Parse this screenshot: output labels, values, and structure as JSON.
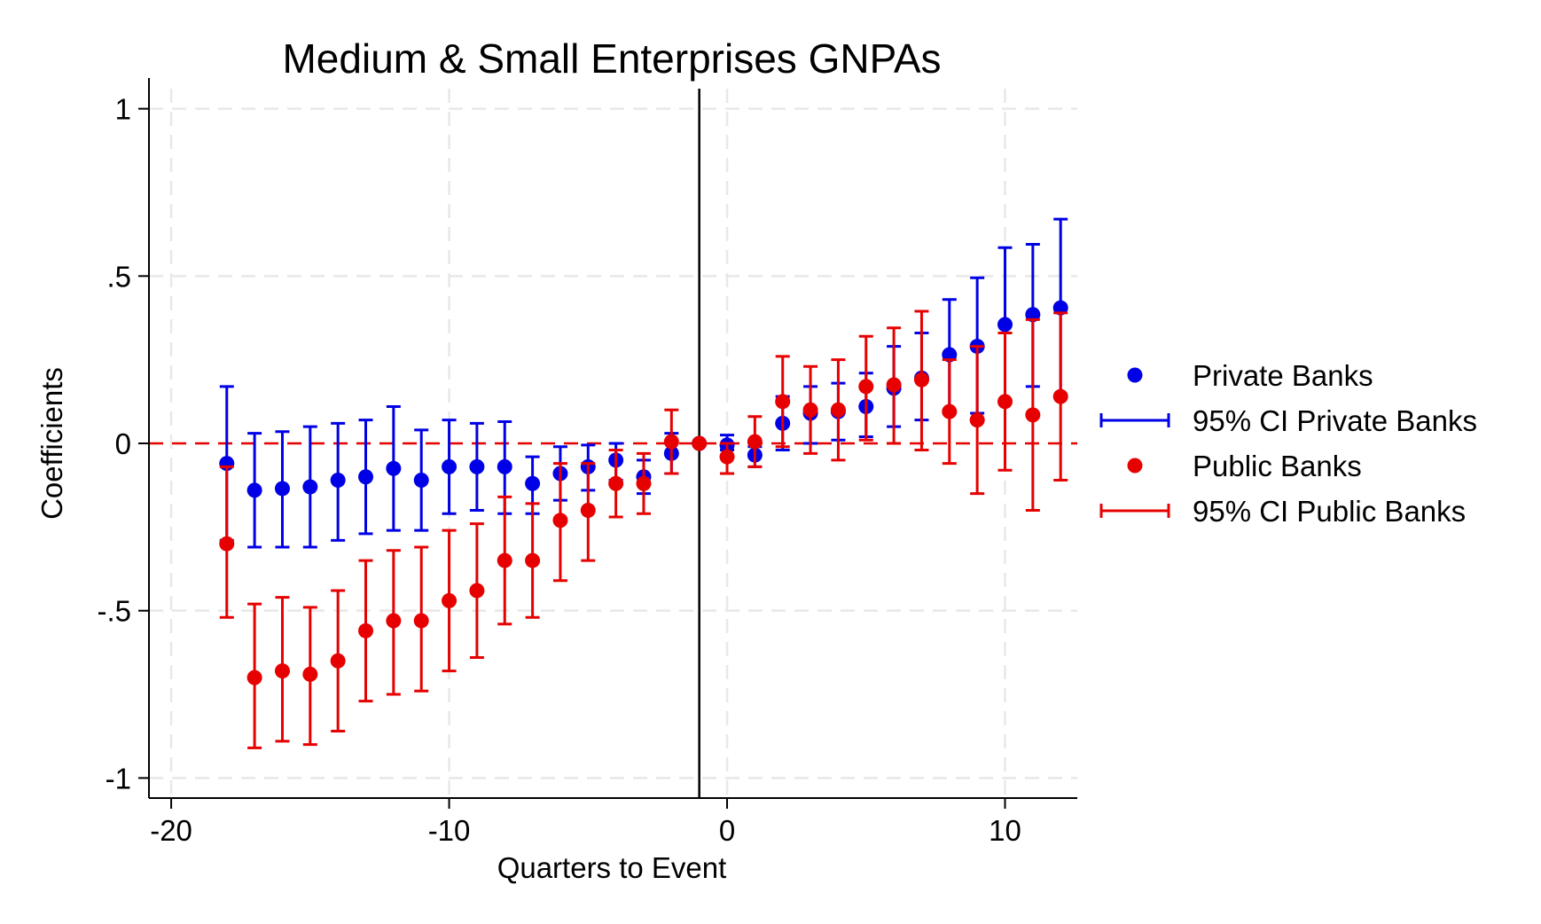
{
  "chart_data": {
    "type": "scatter",
    "title": "Medium & Small Enterprises GNPAs",
    "xlabel": "Quarters to Event",
    "ylabel": "Coefficients",
    "xlim": [
      -20.8,
      12.6
    ],
    "ylim": [
      -1.06,
      1.06
    ],
    "xticks": [
      -20,
      -10,
      0,
      10
    ],
    "xtick_labels": [
      "-20",
      "-10",
      "0",
      "10"
    ],
    "yticks": [
      1,
      0.5,
      0,
      -0.5,
      -1
    ],
    "ytick_labels": [
      "1",
      ".5",
      "0",
      "-.5",
      "-1"
    ],
    "event_line_x": -1,
    "reference_line_y": 0,
    "grid": true,
    "legend_position": "right",
    "legend": [
      {
        "label": "Private Banks",
        "kind": "marker",
        "color": "#0000e6"
      },
      {
        "label": "95% CI Private Banks",
        "kind": "ci",
        "color": "#0000e6"
      },
      {
        "label": "Public Banks",
        "kind": "marker",
        "color": "#e60000"
      },
      {
        "label": "95% CI Public Banks",
        "kind": "ci",
        "color": "#e60000"
      }
    ],
    "series": [
      {
        "name": "Private Banks",
        "color": "#0000e6",
        "x": [
          -18,
          -17,
          -16,
          -15,
          -14,
          -13,
          -12,
          -11,
          -10,
          -9,
          -8,
          -7,
          -6,
          -5,
          -4,
          -3,
          -2,
          -1,
          0,
          1,
          2,
          3,
          4,
          5,
          6,
          7,
          8,
          9,
          10,
          11,
          12
        ],
        "y": [
          -0.06,
          -0.14,
          -0.135,
          -0.13,
          -0.11,
          -0.1,
          -0.075,
          -0.11,
          -0.07,
          -0.07,
          -0.07,
          -0.12,
          -0.09,
          -0.07,
          -0.05,
          -0.1,
          -0.03,
          0,
          -0.005,
          -0.035,
          0.06,
          0.09,
          0.095,
          0.11,
          0.165,
          0.195,
          0.265,
          0.29,
          0.355,
          0.385,
          0.405
        ],
        "lower": [
          -0.29,
          -0.31,
          -0.31,
          -0.31,
          -0.29,
          -0.27,
          -0.26,
          -0.26,
          -0.21,
          -0.2,
          -0.21,
          -0.21,
          -0.17,
          -0.14,
          -0.11,
          -0.15,
          -0.09,
          0,
          -0.02,
          -0.07,
          -0.02,
          0.0,
          0.01,
          0.02,
          0.05,
          0.07,
          0.09,
          0.09,
          0.13,
          0.17,
          0.14
        ],
        "upper": [
          0.17,
          0.03,
          0.035,
          0.05,
          0.06,
          0.07,
          0.11,
          0.04,
          0.07,
          0.06,
          0.065,
          -0.04,
          -0.01,
          -0.005,
          0.0,
          -0.05,
          0.03,
          0,
          0.025,
          -0.01,
          0.14,
          0.17,
          0.18,
          0.21,
          0.29,
          0.33,
          0.43,
          0.495,
          0.585,
          0.595,
          0.67
        ]
      },
      {
        "name": "Public Banks",
        "color": "#e60000",
        "x": [
          -18,
          -17,
          -16,
          -15,
          -14,
          -13,
          -12,
          -11,
          -10,
          -9,
          -8,
          -7,
          -6,
          -5,
          -4,
          -3,
          -2,
          -1,
          0,
          1,
          2,
          3,
          4,
          5,
          6,
          7,
          8,
          9,
          10,
          11,
          12
        ],
        "y": [
          -0.3,
          -0.7,
          -0.68,
          -0.69,
          -0.65,
          -0.56,
          -0.53,
          -0.53,
          -0.47,
          -0.44,
          -0.35,
          -0.35,
          -0.23,
          -0.2,
          -0.12,
          -0.12,
          0.005,
          0,
          -0.04,
          0.005,
          0.125,
          0.1,
          0.1,
          0.17,
          0.175,
          0.19,
          0.095,
          0.07,
          0.125,
          0.085,
          0.14
        ],
        "lower": [
          -0.52,
          -0.91,
          -0.89,
          -0.9,
          -0.86,
          -0.77,
          -0.75,
          -0.74,
          -0.68,
          -0.64,
          -0.54,
          -0.52,
          -0.41,
          -0.35,
          -0.22,
          -0.21,
          -0.09,
          0,
          -0.09,
          -0.07,
          -0.01,
          -0.03,
          -0.05,
          0.01,
          0.0,
          -0.02,
          -0.06,
          -0.15,
          -0.08,
          -0.2,
          -0.11
        ],
        "upper": [
          -0.07,
          -0.48,
          -0.46,
          -0.49,
          -0.44,
          -0.35,
          -0.32,
          -0.31,
          -0.26,
          -0.24,
          -0.16,
          -0.18,
          -0.06,
          -0.06,
          -0.02,
          -0.03,
          0.1,
          0,
          0.0,
          0.08,
          0.26,
          0.23,
          0.25,
          0.32,
          0.345,
          0.395,
          0.25,
          0.29,
          0.33,
          0.37,
          0.39
        ]
      }
    ]
  }
}
